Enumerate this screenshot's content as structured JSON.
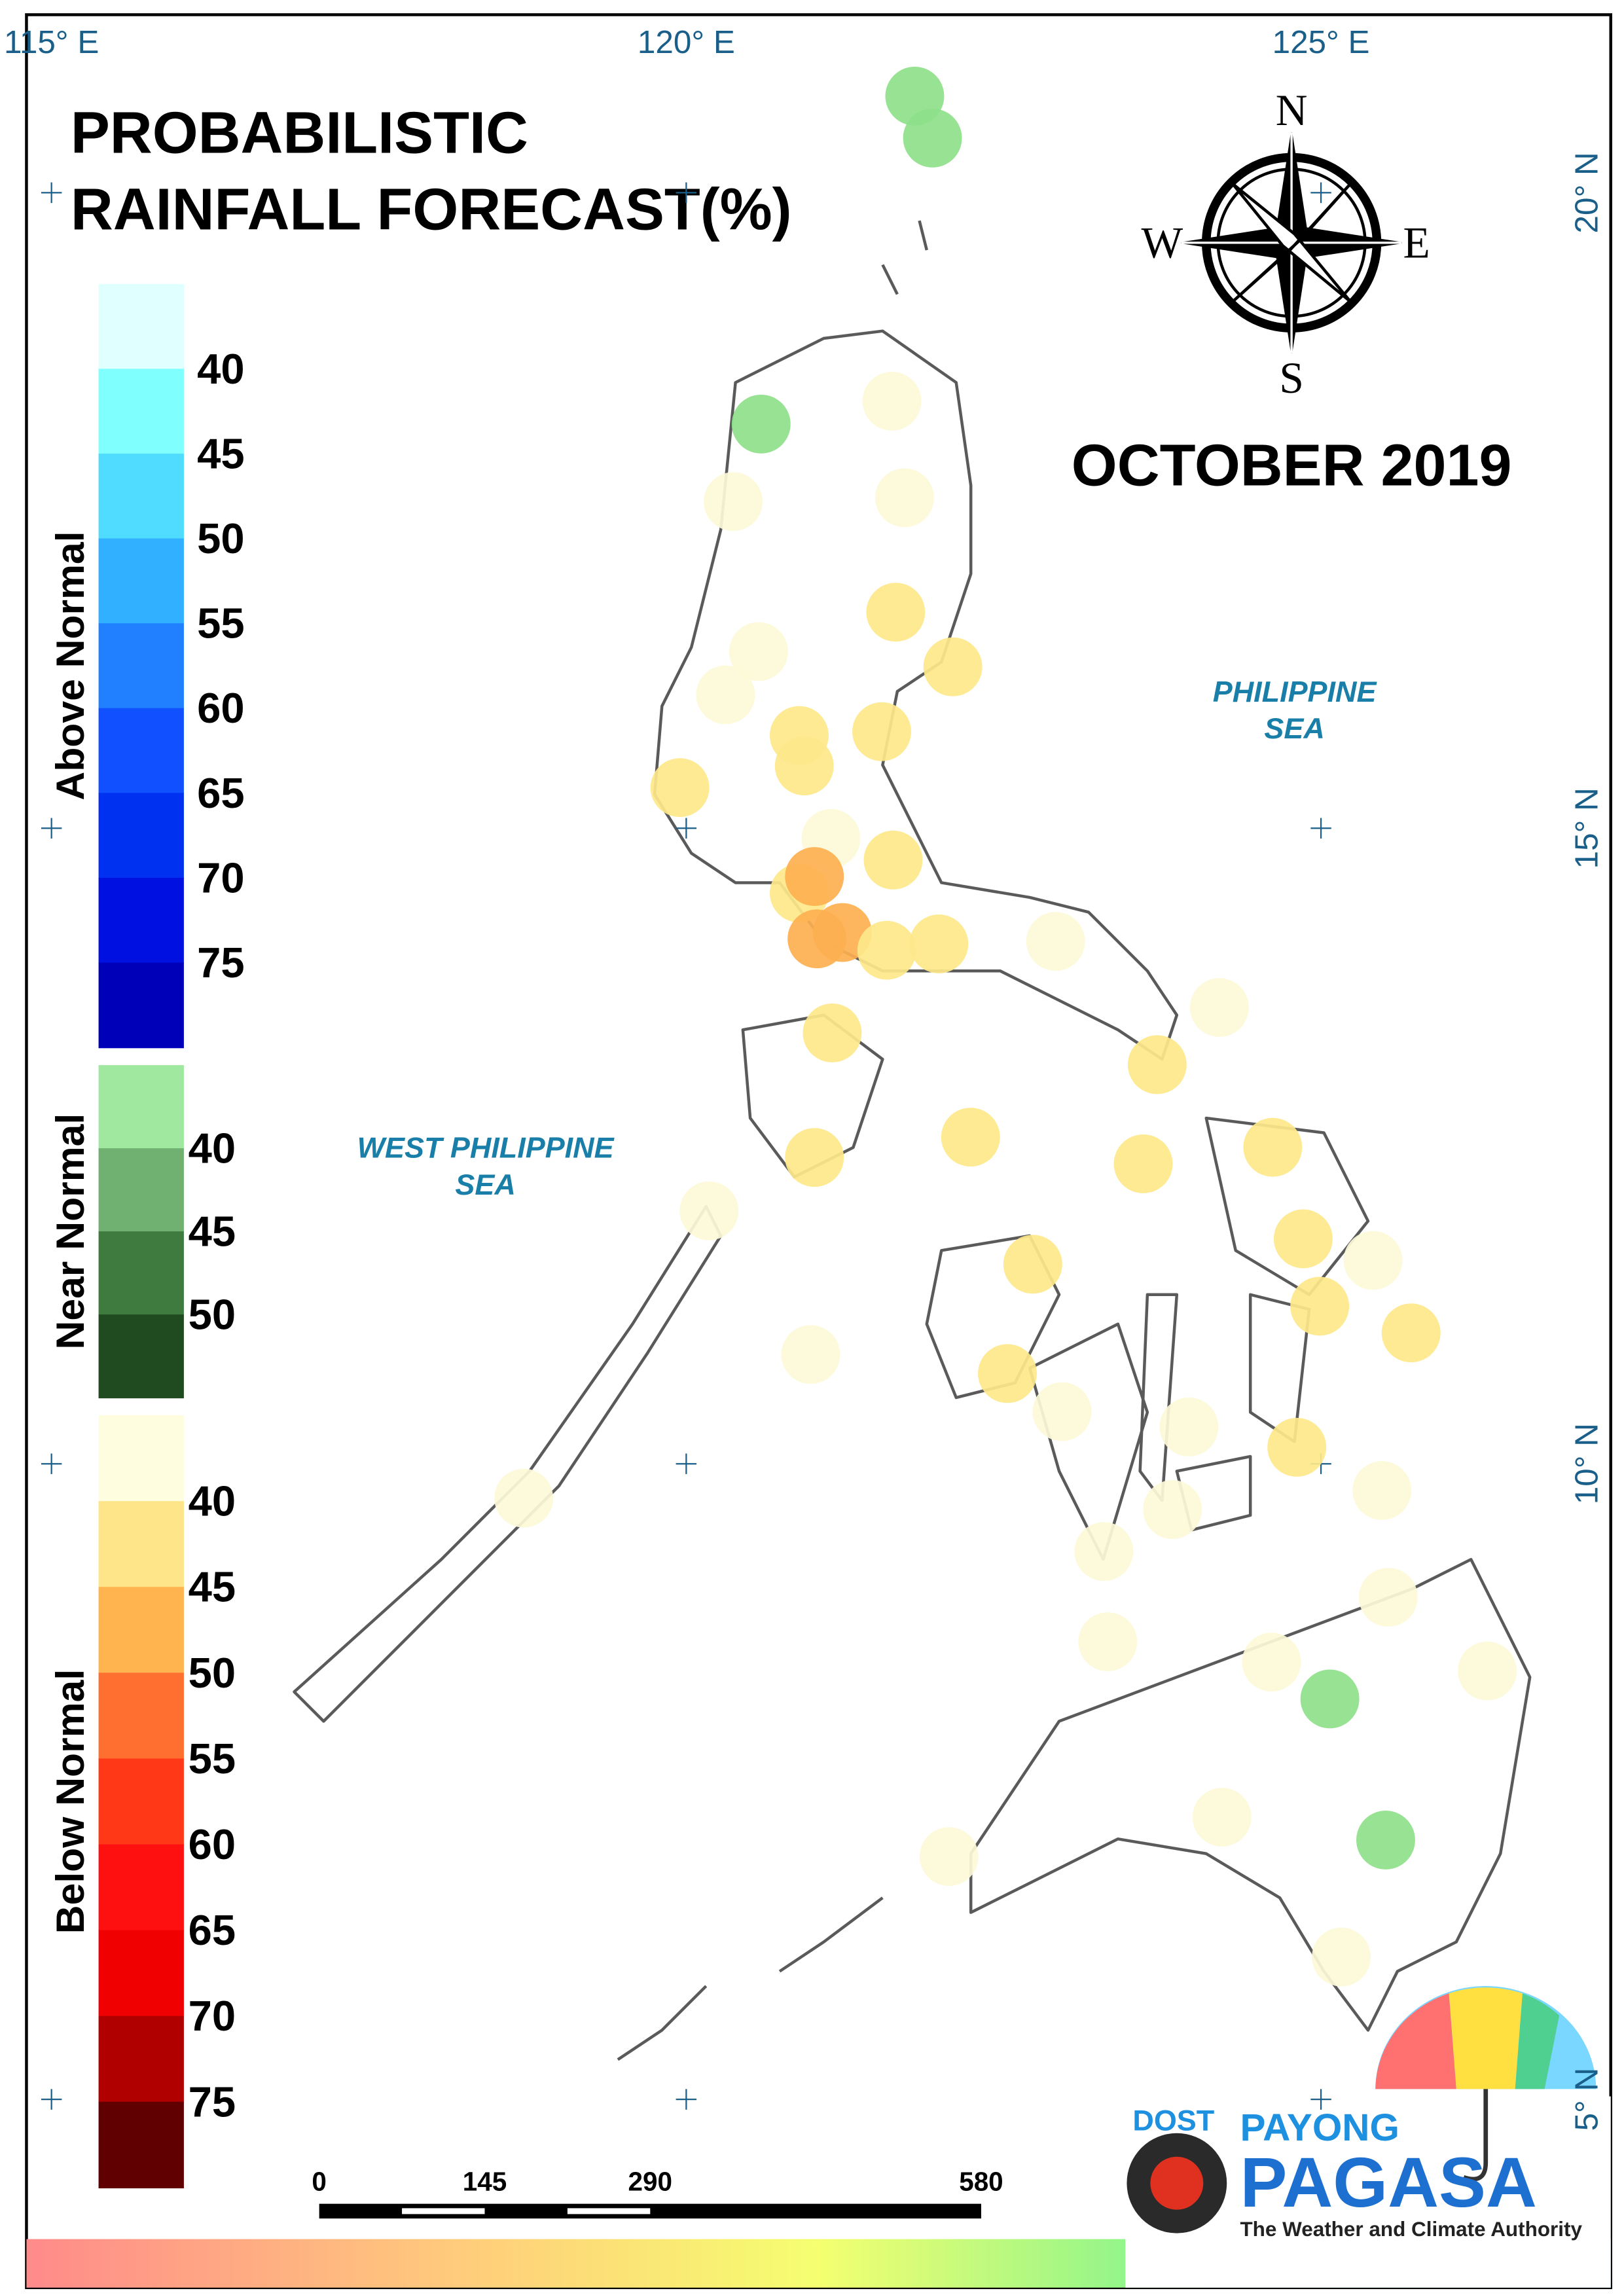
{
  "title": [
    "PROBABILISTIC",
    "RAINFALL FORECAST(%)"
  ],
  "period": "OCTOBER 2019",
  "seas": [
    {
      "lines": [
        "PHILIPPINE",
        "SEA"
      ]
    },
    {
      "lines": [
        "WEST PHILIPPINE",
        "SEA"
      ]
    }
  ],
  "compass": {
    "n": "N",
    "e": "E",
    "s": "S",
    "w": "W"
  },
  "map": {
    "lon_ticks": [
      {
        "value": 115,
        "label": "115° E"
      },
      {
        "value": 120,
        "label": "120° E"
      },
      {
        "value": 125,
        "label": "125° E"
      }
    ],
    "lat_ticks": [
      {
        "value": 20,
        "label": "20° N"
      },
      {
        "value": 15,
        "label": "15° N"
      },
      {
        "value": 10,
        "label": "10° N"
      },
      {
        "value": 5,
        "label": "5° N"
      }
    ],
    "points": [
      {
        "lon": 121.8,
        "lat": 20.76,
        "color": "#8ee08a"
      },
      {
        "lon": 121.94,
        "lat": 20.43,
        "color": "#8ee08a"
      },
      {
        "lon": 120.59,
        "lat": 18.18,
        "color": "#8ee08a"
      },
      {
        "lon": 121.62,
        "lat": 18.36,
        "color": "#fdfad8"
      },
      {
        "lon": 120.37,
        "lat": 17.57,
        "color": "#fdfad8"
      },
      {
        "lon": 121.72,
        "lat": 17.6,
        "color": "#fdfad8"
      },
      {
        "lon": 121.65,
        "lat": 16.7,
        "color": "#fde88a"
      },
      {
        "lon": 120.57,
        "lat": 16.39,
        "color": "#fdfad8"
      },
      {
        "lon": 122.1,
        "lat": 16.27,
        "color": "#fde88a"
      },
      {
        "lon": 120.31,
        "lat": 16.05,
        "color": "#fdfad8"
      },
      {
        "lon": 120.89,
        "lat": 15.73,
        "color": "#fde88a"
      },
      {
        "lon": 121.54,
        "lat": 15.76,
        "color": "#fde88a"
      },
      {
        "lon": 120.93,
        "lat": 15.49,
        "color": "#fde88a"
      },
      {
        "lon": 119.95,
        "lat": 15.32,
        "color": "#fde88a"
      },
      {
        "lon": 121.14,
        "lat": 14.92,
        "color": "#fdfad8"
      },
      {
        "lon": 121.63,
        "lat": 14.75,
        "color": "#fde88a"
      },
      {
        "lon": 120.89,
        "lat": 14.49,
        "color": "#fde88a"
      },
      {
        "lon": 121.01,
        "lat": 14.62,
        "color": "#fdb050"
      },
      {
        "lon": 121.03,
        "lat": 14.13,
        "color": "#fdb050"
      },
      {
        "lon": 121.23,
        "lat": 14.18,
        "color": "#fdb050"
      },
      {
        "lon": 121.58,
        "lat": 14.04,
        "color": "#fde88a"
      },
      {
        "lon": 121.99,
        "lat": 14.09,
        "color": "#fde88a"
      },
      {
        "lon": 122.91,
        "lat": 14.11,
        "color": "#fdfad8"
      },
      {
        "lon": 124.2,
        "lat": 13.59,
        "color": "#fdfad8"
      },
      {
        "lon": 121.15,
        "lat": 13.39,
        "color": "#fde88a"
      },
      {
        "lon": 123.71,
        "lat": 13.14,
        "color": "#fde88a"
      },
      {
        "lon": 122.24,
        "lat": 12.57,
        "color": "#fde88a"
      },
      {
        "lon": 121.01,
        "lat": 12.41,
        "color": "#fde88a"
      },
      {
        "lon": 123.6,
        "lat": 12.36,
        "color": "#fde88a"
      },
      {
        "lon": 124.62,
        "lat": 12.49,
        "color": "#fde88a"
      },
      {
        "lon": 120.18,
        "lat": 11.99,
        "color": "#fdfad8"
      },
      {
        "lon": 124.86,
        "lat": 11.77,
        "color": "#fde88a"
      },
      {
        "lon": 125.41,
        "lat": 11.6,
        "color": "#fdfad8"
      },
      {
        "lon": 122.73,
        "lat": 11.57,
        "color": "#fde88a"
      },
      {
        "lon": 124.99,
        "lat": 11.24,
        "color": "#fde88a"
      },
      {
        "lon": 125.71,
        "lat": 11.03,
        "color": "#fde88a"
      },
      {
        "lon": 120.98,
        "lat": 10.86,
        "color": "#fdfad8"
      },
      {
        "lon": 122.53,
        "lat": 10.71,
        "color": "#fde88a"
      },
      {
        "lon": 122.96,
        "lat": 10.41,
        "color": "#fdfad8"
      },
      {
        "lon": 123.96,
        "lat": 10.29,
        "color": "#fdfad8"
      },
      {
        "lon": 124.81,
        "lat": 10.13,
        "color": "#fde88a"
      },
      {
        "lon": 118.72,
        "lat": 9.73,
        "color": "#fdfad8"
      },
      {
        "lon": 125.48,
        "lat": 9.79,
        "color": "#fdfad8"
      },
      {
        "lon": 123.83,
        "lat": 9.64,
        "color": "#fdfad8"
      },
      {
        "lon": 123.29,
        "lat": 9.31,
        "color": "#fdfad8"
      },
      {
        "lon": 125.53,
        "lat": 8.95,
        "color": "#fdfad8"
      },
      {
        "lon": 123.32,
        "lat": 8.6,
        "color": "#fdfad8"
      },
      {
        "lon": 124.61,
        "lat": 8.44,
        "color": "#fdfad8"
      },
      {
        "lon": 125.07,
        "lat": 8.15,
        "color": "#8ee08a"
      },
      {
        "lon": 126.31,
        "lat": 8.37,
        "color": "#fdfad8"
      },
      {
        "lon": 124.22,
        "lat": 7.22,
        "color": "#fdfad8"
      },
      {
        "lon": 125.51,
        "lat": 7.04,
        "color": "#8ee08a"
      },
      {
        "lon": 122.07,
        "lat": 6.91,
        "color": "#fdfad8"
      },
      {
        "lon": 125.16,
        "lat": 6.12,
        "color": "#fdfad8"
      }
    ]
  },
  "legend": [
    {
      "title": "Above Normal",
      "colors": [
        "#e0ffff",
        "#80ffff",
        "#50dcff",
        "#30b0ff",
        "#2080ff",
        "#1050ff",
        "#0030f0",
        "#0010e0",
        "#0000b8"
      ],
      "ticks": [
        40,
        45,
        50,
        55,
        60,
        65,
        70,
        75
      ]
    },
    {
      "title": "Near Normal",
      "colors": [
        "#a0e8a0",
        "#70b070",
        "#3f7a3f",
        "#204a20"
      ],
      "ticks": [
        40,
        45,
        50
      ]
    },
    {
      "title": "Below Normal",
      "colors": [
        "#fffde0",
        "#ffe58a",
        "#ffb450",
        "#ff7030",
        "#ff3818",
        "#ff1010",
        "#f00000",
        "#b00000",
        "#600000"
      ],
      "ticks": [
        40,
        45,
        50,
        55,
        60,
        65,
        70,
        75
      ]
    }
  ],
  "scale_bar": {
    "ticks": [
      0,
      145,
      290,
      580
    ]
  },
  "logo": {
    "dost": "DOST",
    "payong": "PAYONG",
    "pagasa": "PAGASA",
    "tagline": "The Weather and Climate Authority"
  }
}
